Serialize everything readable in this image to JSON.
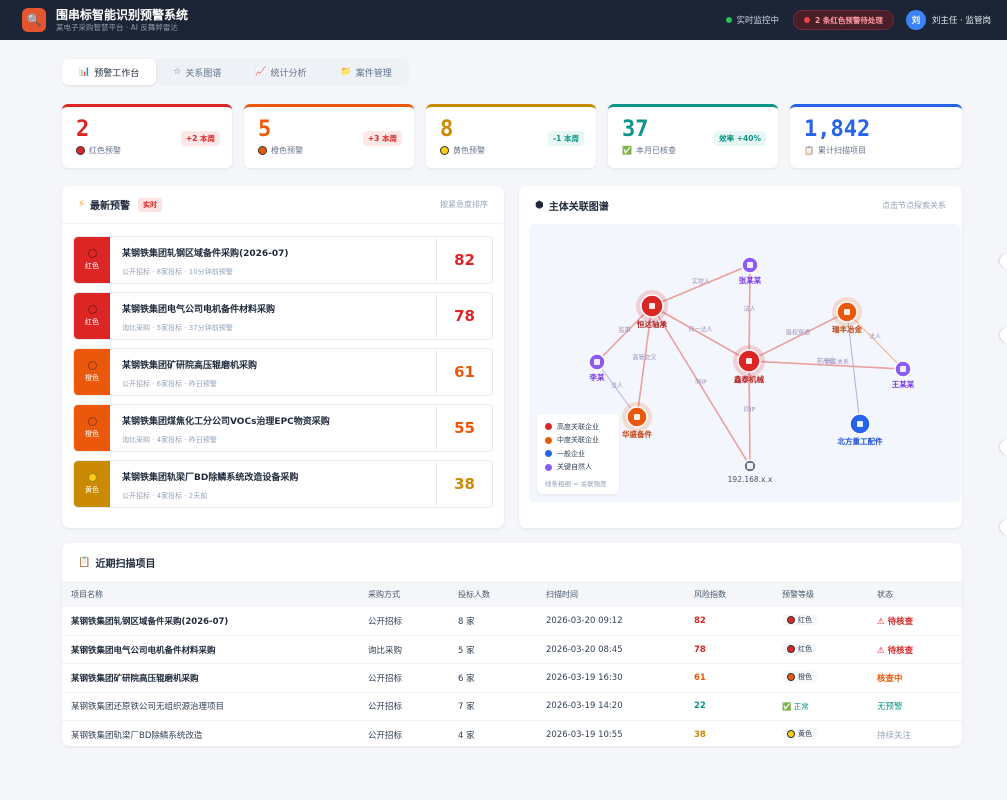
{
  "header": {
    "title": "围串标智能识别预警系统",
    "subtitle": "某电子采购智慧平台 · AI 反舞弊雷达",
    "status": "实时监控中",
    "alert": "2 条红色预警待处理",
    "avatar": "刘",
    "user": "刘主任 · 监管岗"
  },
  "tabs": [
    {
      "icon": "📊",
      "label": "预警工作台"
    },
    {
      "icon": "☆",
      "label": "关系图谱"
    },
    {
      "icon": "📈",
      "label": "统计分析"
    },
    {
      "icon": "📁",
      "label": "案件管理"
    }
  ],
  "stats": [
    {
      "value": "2",
      "label": "红色预警",
      "change": "+2 本周",
      "color": "#dc2626",
      "dot": "#dc2626"
    },
    {
      "value": "5",
      "label": "橙色预警",
      "change": "+3 本周",
      "color": "#ea580c",
      "dot": "#ea580c"
    },
    {
      "value": "8",
      "label": "黄色预警",
      "change": "-1 本周",
      "color": "#ca8a04",
      "dot": "#facc15"
    },
    {
      "value": "37",
      "label": "本月已核查",
      "change": "效率 +40%",
      "color": "#0d9488",
      "icon": "✅"
    },
    {
      "value": "1,842",
      "label": "累计扫描项目",
      "change": "",
      "color": "#2563eb",
      "icon": "📋"
    }
  ],
  "alerts_panel": {
    "title": "最新预警",
    "live": "实时",
    "hint": "按紧急度排序"
  },
  "alerts": [
    {
      "level": "红色",
      "color": "#dc2626",
      "dot": "#dc2626",
      "name": "某钢铁集团轧钢区域备件采购(2026-07)",
      "meta": "公开招标 · 8家投标 · 10分钟前预警",
      "score": "82"
    },
    {
      "level": "红色",
      "color": "#dc2626",
      "dot": "#dc2626",
      "name": "某钢铁集团电气公司电机备件材料采购",
      "meta": "询比采购 · 5家投标 · 37分钟前预警",
      "score": "78"
    },
    {
      "level": "橙色",
      "color": "#ea580c",
      "dot": "#ea580c",
      "name": "某钢铁集团矿研院高压辊磨机采购",
      "meta": "公开招标 · 6家投标 · 昨日预警",
      "score": "61"
    },
    {
      "level": "橙色",
      "color": "#ea580c",
      "dot": "#ea580c",
      "name": "某钢铁集团煤焦化工分公司VOCs治理EPC物资采购",
      "meta": "询比采购 · 4家投标 · 昨日预警",
      "score": "55"
    },
    {
      "level": "黄色",
      "color": "#ca8a04",
      "dot": "#facc15",
      "name": "某钢铁集团轨梁厂BD除鳞系统改造设备采购",
      "meta": "公开招标 · 4家投标 · 2天前",
      "score": "38"
    }
  ],
  "graph_panel": {
    "title": "主体关联图谱",
    "hint": "点击节点探索关系"
  },
  "graph": {
    "nodes": [
      {
        "id": "hengda",
        "label": "恒达轴承",
        "type": "high"
      },
      {
        "id": "xintai",
        "label": "鑫泰机械",
        "type": "high"
      },
      {
        "id": "ruifeng",
        "label": "瑞丰冶金",
        "type": "mid"
      },
      {
        "id": "huasheng",
        "label": "华盛备件",
        "type": "mid"
      },
      {
        "id": "beifang",
        "label": "北方重工配件",
        "type": "normal"
      },
      {
        "id": "zhang",
        "label": "张某某",
        "type": "person"
      },
      {
        "id": "li",
        "label": "李某",
        "type": "person"
      },
      {
        "id": "wang",
        "label": "王某某",
        "type": "person"
      },
      {
        "id": "ip",
        "label": "192.168.x.x",
        "type": "ip"
      }
    ],
    "edges": [
      {
        "from": "hengda",
        "to": "zhang",
        "label": "实控人"
      },
      {
        "from": "hengda",
        "to": "li",
        "label": "监事"
      },
      {
        "from": "hengda",
        "to": "xintai",
        "label": "同一法人"
      },
      {
        "from": "hengda",
        "to": "huasheng",
        "label": "高管交叉"
      },
      {
        "from": "hengda",
        "to": "ip",
        "label": "同IP"
      },
      {
        "from": "xintai",
        "to": "zhang",
        "label": "法人"
      },
      {
        "from": "xintai",
        "to": "ruifeng",
        "label": "股权穿透"
      },
      {
        "from": "xintai",
        "to": "wang",
        "label": "前高管"
      },
      {
        "from": "xintai",
        "to": "ip",
        "label": "同IP"
      },
      {
        "from": "li",
        "to": "huasheng",
        "label": "法人"
      },
      {
        "from": "ruifeng",
        "to": "wang",
        "label": "法人"
      },
      {
        "from": "ruifeng",
        "to": "beifang",
        "label": ""
      }
    ],
    "edge_extra_label": "供应关系",
    "legend": [
      {
        "label": "高度关联企业",
        "color": "#dc2626"
      },
      {
        "label": "中度关联企业",
        "color": "#ea580c"
      },
      {
        "label": "一般企业",
        "color": "#2563eb"
      },
      {
        "label": "关键自然人",
        "color": "#8b5cf6"
      }
    ],
    "legend_note": "线条粗细 = 关联强度"
  },
  "table_panel": {
    "title": "近期扫描项目"
  },
  "table": {
    "headers": [
      "项目名称",
      "采购方式",
      "投标人数",
      "扫描时间",
      "风险指数",
      "预警等级",
      "状态"
    ],
    "rows": [
      {
        "name": "某钢铁集团轧钢区域备件采购(2026-07)",
        "method": "公开招标",
        "count": "8 家",
        "time": "2026-03-20 09:12",
        "score": "82",
        "score_color": "#dc2626",
        "level": "红色",
        "dot": "#dc2626",
        "status": "⚠ 待核查",
        "status_color": "#dc2626",
        "bold": true
      },
      {
        "name": "某钢铁集团电气公司电机备件材料采购",
        "method": "询比采购",
        "count": "5 家",
        "time": "2026-03-20 08:45",
        "score": "78",
        "score_color": "#dc2626",
        "level": "红色",
        "dot": "#dc2626",
        "status": "⚠ 待核查",
        "status_color": "#dc2626",
        "bold": true
      },
      {
        "name": "某钢铁集团矿研院高压辊磨机采购",
        "method": "公开招标",
        "count": "6 家",
        "time": "2026-03-19 16:30",
        "score": "61",
        "score_color": "#ea580c",
        "level": "橙色",
        "dot": "#ea580c",
        "status": "核查中",
        "status_color": "#ea580c",
        "bold": true
      },
      {
        "name": "某钢铁集团还原铁公司无组织源治理项目",
        "method": "公开招标",
        "count": "7 家",
        "time": "2026-03-19 14:20",
        "score": "22",
        "score_color": "#0d9488",
        "level": "✅ 正常",
        "dot": "",
        "status": "无预警",
        "status_color": "#0d9488",
        "bold": false
      },
      {
        "name": "某钢铁集团轨梁厂BD除鳞系统改造",
        "method": "公开招标",
        "count": "4 家",
        "time": "2026-03-19 10:55",
        "score": "38",
        "score_color": "#ca8a04",
        "level": "黄色",
        "dot": "#facc15",
        "status": "持续关注",
        "status_color": "#94a3b8",
        "bold": false
      }
    ]
  }
}
